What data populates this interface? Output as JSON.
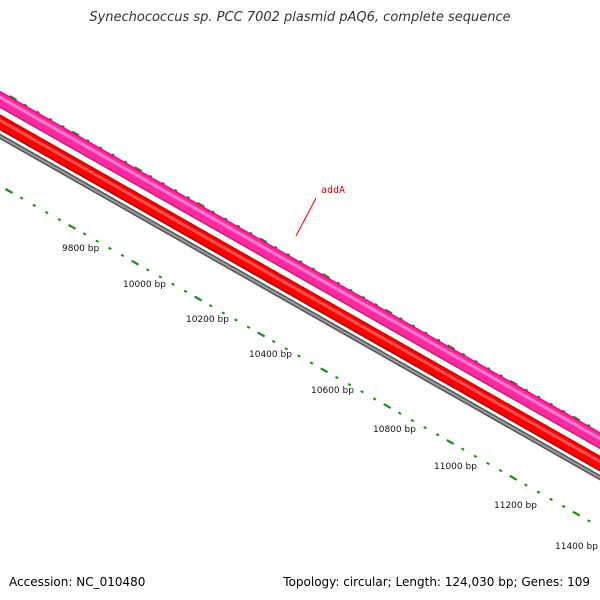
{
  "title": "Synechococcus sp. PCC 7002 plasmid pAQ6, complete sequence",
  "footer": {
    "accession": "Accession: NC_010480",
    "summary": "Topology: circular; Length: 124,030 bp; Genes: 109"
  },
  "feature_label": {
    "text": "addA",
    "color": "#e00000"
  },
  "scale_labels": [
    "9800 bp",
    "10000 bp",
    "10200 bp",
    "10400 bp",
    "10600 bp",
    "10800 bp",
    "11000 bp",
    "11200 bp",
    "11400 bp"
  ],
  "colors": {
    "gene_track": "#ff2aa0",
    "cds_track": "#ff0000",
    "backbone": "#808080",
    "ticks": "#1a8a1a"
  }
}
